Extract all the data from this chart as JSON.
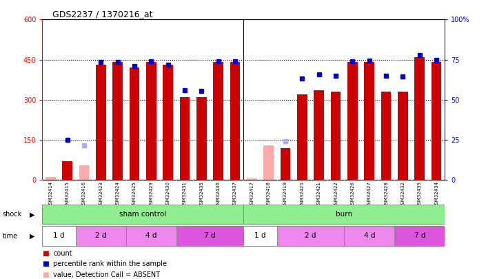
{
  "title": "GDS2237 / 1370216_at",
  "samples": [
    "GSM32414",
    "GSM32415",
    "GSM32416",
    "GSM32423",
    "GSM32424",
    "GSM32425",
    "GSM32429",
    "GSM32430",
    "GSM32431",
    "GSM32435",
    "GSM32436",
    "GSM32437",
    "GSM32417",
    "GSM32418",
    "GSM32419",
    "GSM32420",
    "GSM32421",
    "GSM32422",
    "GSM32426",
    "GSM32427",
    "GSM32428",
    "GSM32432",
    "GSM32433",
    "GSM32434"
  ],
  "red_values": [
    10,
    70,
    55,
    430,
    440,
    420,
    440,
    430,
    310,
    310,
    440,
    440,
    5,
    130,
    120,
    320,
    335,
    330,
    440,
    440,
    330,
    330,
    460,
    440
  ],
  "blue_values": [
    null,
    150,
    130,
    440,
    442,
    425,
    445,
    430,
    335,
    333,
    445,
    443,
    null,
    null,
    145,
    380,
    395,
    390,
    445,
    447,
    390,
    388,
    467,
    448
  ],
  "absent_red": [
    true,
    false,
    true,
    false,
    false,
    false,
    false,
    false,
    false,
    false,
    false,
    false,
    true,
    true,
    false,
    false,
    false,
    false,
    false,
    false,
    false,
    false,
    false,
    false
  ],
  "absent_blue": [
    true,
    false,
    true,
    false,
    false,
    false,
    false,
    false,
    false,
    false,
    false,
    false,
    false,
    true,
    true,
    false,
    false,
    false,
    false,
    false,
    false,
    false,
    false,
    false
  ],
  "red_present_color": "#cc0000",
  "red_absent_color": "#ffaaaa",
  "blue_present_color": "#0000cc",
  "blue_absent_color": "#aaaaff",
  "ylim_left": [
    0,
    600
  ],
  "ylim_right": [
    0,
    100
  ],
  "yticks_left": [
    0,
    150,
    300,
    450,
    600
  ],
  "yticks_right": [
    0,
    25,
    50,
    75,
    100
  ],
  "time_groups_sham": [
    {
      "label": "1 d",
      "cols": 2,
      "color": "#ffffff"
    },
    {
      "label": "2 d",
      "cols": 3,
      "color": "#ee88ee"
    },
    {
      "label": "4 d",
      "cols": 3,
      "color": "#ee88ee"
    },
    {
      "label": "7 d",
      "cols": 4,
      "color": "#dd55dd"
    }
  ],
  "time_groups_burn": [
    {
      "label": "1 d",
      "cols": 2,
      "color": "#ffffff"
    },
    {
      "label": "2 d",
      "cols": 4,
      "color": "#ee88ee"
    },
    {
      "label": "4 d",
      "cols": 3,
      "color": "#ee88ee"
    },
    {
      "label": "7 d",
      "cols": 3,
      "color": "#dd55dd"
    }
  ]
}
